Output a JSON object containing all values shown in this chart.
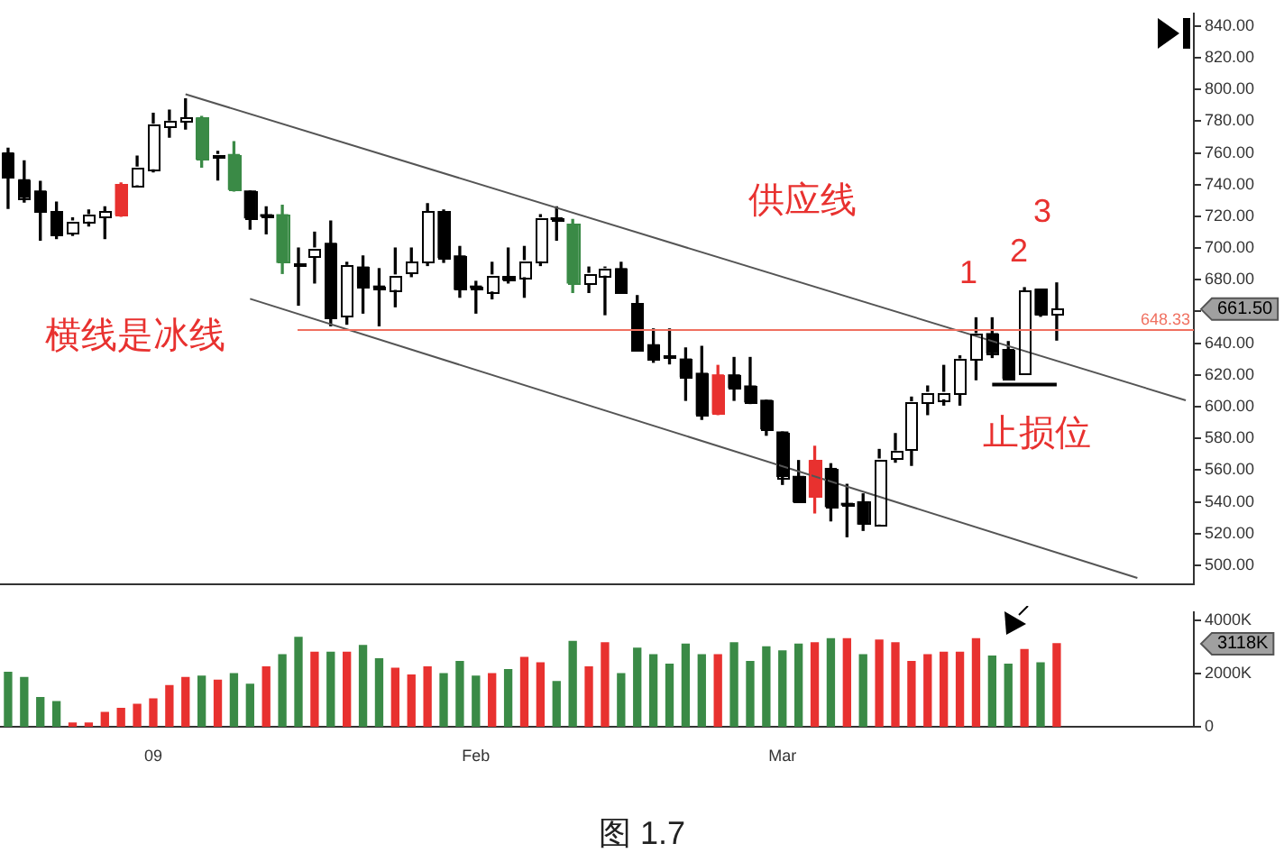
{
  "chart_data": [
    {
      "type": "candlestick",
      "categories": [
        null,
        null,
        null,
        null,
        null,
        null,
        null,
        null,
        null,
        null,
        null,
        null,
        null,
        null,
        null,
        null,
        null,
        null,
        null,
        null,
        null,
        null,
        null,
        null,
        null,
        null,
        null,
        null,
        null,
        null,
        null,
        null,
        null,
        null,
        null,
        null,
        null,
        null,
        null,
        null,
        null,
        null,
        null,
        null,
        null,
        null,
        null,
        null,
        null,
        null,
        null,
        null,
        null,
        null,
        null,
        null,
        null,
        null,
        null,
        null,
        null,
        null,
        null,
        null,
        null,
        null,
        null,
        null,
        null,
        null,
        null,
        null,
        null,
        null
      ],
      "ohlc": [
        [
          760,
          763,
          725,
          745
        ],
        [
          743,
          755,
          729,
          732
        ],
        [
          736,
          742,
          705,
          723
        ],
        [
          723,
          729,
          706,
          708
        ],
        [
          710,
          719,
          708,
          717
        ],
        [
          717,
          724,
          714,
          721
        ],
        [
          720,
          726,
          706,
          723
        ],
        [
          721,
          741,
          720,
          740
        ],
        [
          740,
          758,
          739,
          751
        ],
        [
          750,
          785,
          748,
          778
        ],
        [
          777,
          787,
          770,
          780
        ],
        [
          780,
          794,
          775,
          782
        ],
        [
          782,
          783,
          751,
          756
        ],
        [
          758,
          761,
          743,
          759
        ],
        [
          759,
          767,
          736,
          737
        ],
        [
          736,
          736,
          712,
          719
        ],
        [
          721,
          726,
          709,
          720
        ],
        [
          721,
          727,
          684,
          691
        ],
        [
          689,
          700,
          664,
          690
        ],
        [
          695,
          710,
          678,
          700
        ],
        [
          703,
          717,
          651,
          656
        ],
        [
          657,
          691,
          652,
          689
        ],
        [
          688,
          695,
          659,
          676
        ],
        [
          676,
          687,
          651,
          675
        ],
        [
          674,
          700,
          663,
          683
        ],
        [
          684,
          700,
          682,
          691
        ],
        [
          691,
          728,
          689,
          723
        ],
        [
          723,
          724,
          691,
          694
        ],
        [
          695,
          701,
          669,
          674
        ],
        [
          676,
          679,
          659,
          675
        ],
        [
          673,
          691,
          668,
          683
        ],
        [
          682,
          700,
          678,
          680
        ],
        [
          682,
          701,
          669,
          692
        ],
        [
          692,
          721,
          689,
          719
        ],
        [
          719,
          726,
          705,
          718
        ],
        [
          715,
          718,
          672,
          678
        ],
        [
          678,
          688,
          672,
          684
        ],
        [
          683,
          688,
          658,
          687
        ],
        [
          687,
          691,
          672,
          672
        ],
        [
          665,
          670,
          636,
          636
        ],
        [
          639,
          649,
          628,
          630
        ],
        [
          632,
          649,
          627,
          631
        ],
        [
          630,
          637,
          604,
          619
        ],
        [
          621,
          638,
          592,
          595
        ],
        [
          596,
          626,
          595,
          620
        ],
        [
          620,
          631,
          604,
          612
        ],
        [
          613,
          631,
          602,
          603
        ],
        [
          604,
          604,
          582,
          586
        ],
        [
          584,
          584,
          551,
          556
        ],
        [
          556,
          566,
          540,
          540
        ],
        [
          543,
          575,
          533,
          566
        ],
        [
          561,
          564,
          528,
          537
        ],
        [
          539,
          551,
          518,
          538
        ],
        [
          540,
          545,
          522,
          526
        ],
        [
          526,
          573,
          525,
          567
        ],
        [
          567,
          583,
          565,
          572
        ],
        [
          573,
          606,
          563,
          603
        ],
        [
          603,
          613,
          595,
          609
        ],
        [
          605,
          626,
          601,
          609
        ],
        [
          608,
          632,
          601,
          630
        ],
        [
          630,
          656,
          617,
          646
        ],
        [
          646,
          656,
          631,
          634
        ],
        [
          636,
          641,
          617,
          618
        ],
        [
          621,
          675,
          621,
          673
        ],
        [
          674,
          674,
          657,
          658
        ],
        [
          658,
          678,
          642,
          661.5
        ],
        null,
        null,
        null,
        null,
        null,
        null,
        null,
        null
      ],
      "colors": [
        "#000000",
        "#000000",
        "#000000",
        "#000000",
        "#ffffff",
        "#ffffff",
        "#ffffff",
        "#e8312f",
        "#ffffff",
        "#ffffff",
        "#ffffff",
        "#ffffff",
        "#3a8a46",
        "#ffffff",
        "#3a8a46",
        "#000000",
        "#000000",
        "#3a8a46",
        "#ffffff",
        "#ffffff",
        "#000000",
        "#ffffff",
        "#000000",
        "#000000",
        "#ffffff",
        "#ffffff",
        "#ffffff",
        "#000000",
        "#000000",
        "#000000",
        "#ffffff",
        "#000000",
        "#ffffff",
        "#ffffff",
        "#000000",
        "#3a8a46",
        "#ffffff",
        "#ffffff",
        "#000000",
        "#000000",
        "#000000",
        "#000000",
        "#000000",
        "#000000",
        "#e8312f",
        "#000000",
        "#000000",
        "#000000",
        "#000000",
        "#000000",
        "#e8312f",
        "#000000",
        "#000000",
        "#000000",
        "#ffffff",
        "#ffffff",
        "#ffffff",
        "#ffffff",
        "#ffffff",
        "#ffffff",
        "#ffffff",
        "#000000",
        "#000000",
        "#ffffff",
        "#000000",
        "#ffffff",
        null,
        null,
        null,
        null,
        null,
        null,
        null,
        null
      ],
      "ylim": [
        488,
        848
      ],
      "yticks": [
        {
          "value": 500,
          "label": "500.00"
        },
        {
          "value": 520,
          "label": "520.00"
        },
        {
          "value": 540,
          "label": "540.00"
        },
        {
          "value": 560,
          "label": "560.00"
        },
        {
          "value": 580,
          "label": "580.00"
        },
        {
          "value": 600,
          "label": "600.00"
        },
        {
          "value": 620,
          "label": "620.00"
        },
        {
          "value": 640,
          "label": "640.00"
        },
        {
          "value": 660,
          "label": null
        },
        {
          "value": 680,
          "label": "680.00"
        },
        {
          "value": 700,
          "label": "700.00"
        },
        {
          "value": 720,
          "label": "720.00"
        },
        {
          "value": 740,
          "label": "740.00"
        },
        {
          "value": 760,
          "label": "760.00"
        },
        {
          "value": 780,
          "label": "780.00"
        },
        {
          "value": 800,
          "label": "800.00"
        },
        {
          "value": 820,
          "label": "820.00"
        },
        {
          "value": 840,
          "label": "840.00"
        }
      ],
      "series": [
        {
          "type": "line",
          "color": "#555555",
          "values": [
            null,
            null,
            null,
            null,
            null,
            null,
            null,
            null,
            null,
            null,
            null,
            797,
            null,
            null,
            null,
            null,
            null,
            null,
            null,
            null,
            null,
            null,
            null,
            null,
            null,
            null,
            null,
            null,
            null,
            null,
            null,
            null,
            null,
            null,
            null,
            null,
            null,
            null,
            null,
            null,
            null,
            null,
            null,
            null,
            null,
            null,
            null,
            null,
            null,
            null,
            null,
            null,
            null,
            null,
            null,
            null,
            null,
            null,
            null,
            null,
            null,
            null,
            null,
            null,
            null,
            null,
            null,
            null,
            null,
            null,
            null,
            null,
            null,
            604
          ]
        },
        {
          "type": "line",
          "color": "#555555",
          "values": [
            null,
            null,
            null,
            null,
            null,
            null,
            null,
            null,
            null,
            null,
            null,
            null,
            null,
            null,
            null,
            668,
            null,
            null,
            null,
            null,
            null,
            null,
            null,
            null,
            null,
            null,
            null,
            null,
            null,
            null,
            null,
            null,
            null,
            null,
            null,
            null,
            null,
            null,
            null,
            null,
            null,
            null,
            null,
            null,
            null,
            null,
            null,
            null,
            null,
            null,
            null,
            null,
            null,
            null,
            null,
            null,
            null,
            null,
            null,
            null,
            null,
            null,
            null,
            null,
            null,
            null,
            null,
            null,
            null,
            null,
            492,
            null,
            null,
            null
          ]
        },
        {
          "type": "line",
          "color": "#000000",
          "values": [
            null,
            null,
            null,
            null,
            null,
            null,
            null,
            null,
            null,
            null,
            null,
            null,
            null,
            null,
            null,
            null,
            null,
            null,
            null,
            null,
            null,
            null,
            null,
            null,
            null,
            null,
            null,
            null,
            null,
            null,
            null,
            null,
            null,
            null,
            null,
            null,
            null,
            null,
            null,
            null,
            null,
            null,
            null,
            null,
            null,
            null,
            null,
            null,
            null,
            null,
            null,
            null,
            null,
            null,
            null,
            null,
            null,
            null,
            null,
            null,
            null,
            614,
            null,
            null,
            null,
            614,
            null,
            null,
            null,
            null,
            null,
            null,
            null,
            null
          ]
        }
      ],
      "ref_lines": [
        {
          "axis": "y",
          "value": 648.33,
          "label": "648.33",
          "color": "#f07060"
        }
      ],
      "annotations": [
        "供应线",
        "横线是冰线",
        "1",
        "2",
        "3",
        "止损位",
        "661.50"
      ]
    },
    {
      "type": "bar",
      "categories": [
        null,
        null,
        null,
        null,
        null,
        null,
        null,
        null,
        null,
        "09",
        null,
        null,
        null,
        null,
        null,
        null,
        null,
        null,
        null,
        null,
        null,
        null,
        null,
        null,
        null,
        null,
        null,
        null,
        null,
        "Feb",
        null,
        null,
        null,
        null,
        null,
        null,
        null,
        null,
        null,
        null,
        null,
        null,
        null,
        null,
        null,
        null,
        null,
        null,
        "Mar",
        null,
        null,
        null,
        null,
        null,
        null,
        null,
        null,
        null,
        null,
        null,
        null,
        null,
        null,
        null,
        null,
        null,
        null,
        null,
        null,
        null,
        null,
        null,
        null,
        null
      ],
      "values": [
        2050,
        1850,
        1100,
        950,
        150,
        150,
        550,
        700,
        850,
        1050,
        1550,
        1850,
        1900,
        1750,
        2000,
        1600,
        2250,
        2700,
        3350,
        2800,
        2800,
        2800,
        3050,
        2550,
        2200,
        1950,
        2250,
        2000,
        2450,
        1900,
        2000,
        2150,
        2600,
        2400,
        1700,
        3200,
        2250,
        3150,
        2000,
        2950,
        2700,
        2350,
        3100,
        2700,
        2700,
        3150,
        2450,
        3000,
        2850,
        3100,
        3150,
        3300,
        3300,
        2700,
        3250,
        3150,
        2450,
        2700,
        2800,
        2800,
        3300,
        2650,
        2350,
        2900,
        2400,
        3118,
        null,
        null,
        null,
        null,
        null,
        null,
        null,
        null
      ],
      "colors": [
        "#3a8a46",
        "#3a8a46",
        "#3a8a46",
        "#3a8a46",
        "#e8312f",
        "#e8312f",
        "#e8312f",
        "#e8312f",
        "#e8312f",
        "#e8312f",
        "#e8312f",
        "#e8312f",
        "#3a8a46",
        "#e8312f",
        "#3a8a46",
        "#3a8a46",
        "#e8312f",
        "#3a8a46",
        "#3a8a46",
        "#e8312f",
        "#3a8a46",
        "#e8312f",
        "#3a8a46",
        "#3a8a46",
        "#e8312f",
        "#e8312f",
        "#e8312f",
        "#3a8a46",
        "#3a8a46",
        "#3a8a46",
        "#e8312f",
        "#3a8a46",
        "#e8312f",
        "#e8312f",
        "#3a8a46",
        "#3a8a46",
        "#e8312f",
        "#e8312f",
        "#3a8a46",
        "#3a8a46",
        "#3a8a46",
        "#3a8a46",
        "#3a8a46",
        "#3a8a46",
        "#e8312f",
        "#3a8a46",
        "#3a8a46",
        "#3a8a46",
        "#3a8a46",
        "#3a8a46",
        "#e8312f",
        "#3a8a46",
        "#e8312f",
        "#3a8a46",
        "#e8312f",
        "#e8312f",
        "#e8312f",
        "#e8312f",
        "#e8312f",
        "#e8312f",
        "#e8312f",
        "#3a8a46",
        "#3a8a46",
        "#e8312f",
        "#3a8a46",
        "#e8312f",
        null,
        null,
        null,
        null,
        null,
        null,
        null,
        null
      ],
      "ylim": [
        0,
        4300
      ],
      "yticks": [
        {
          "value": 0,
          "label": "0"
        },
        {
          "value": 2000,
          "label": "2000K"
        },
        {
          "value": 4000,
          "label": "4000K"
        }
      ],
      "annotations": [
        "3118K",
        "图 1.7"
      ]
    }
  ]
}
